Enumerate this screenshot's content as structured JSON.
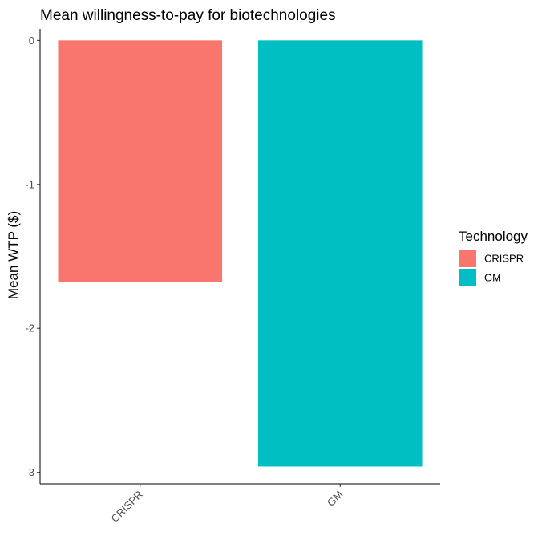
{
  "chart_data": {
    "type": "bar",
    "title": "Mean willingness-to-pay for biotechnologies",
    "xlabel": "",
    "ylabel": "Mean WTP ($)",
    "categories": [
      "CRISPR",
      "GM"
    ],
    "values": [
      -1.68,
      -2.96
    ],
    "colors": [
      "#F8766D",
      "#00BFC4"
    ],
    "ylim": [
      -3.08,
      0.08
    ],
    "yticks": [
      0,
      -1,
      -2,
      -3
    ],
    "x_tick_rotation_deg": -45,
    "grid": false,
    "legend": {
      "title": "Technology",
      "placement": "right",
      "entries": [
        {
          "label": "CRISPR",
          "color": "#F8766D"
        },
        {
          "label": "GM",
          "color": "#00BFC4"
        }
      ]
    }
  }
}
